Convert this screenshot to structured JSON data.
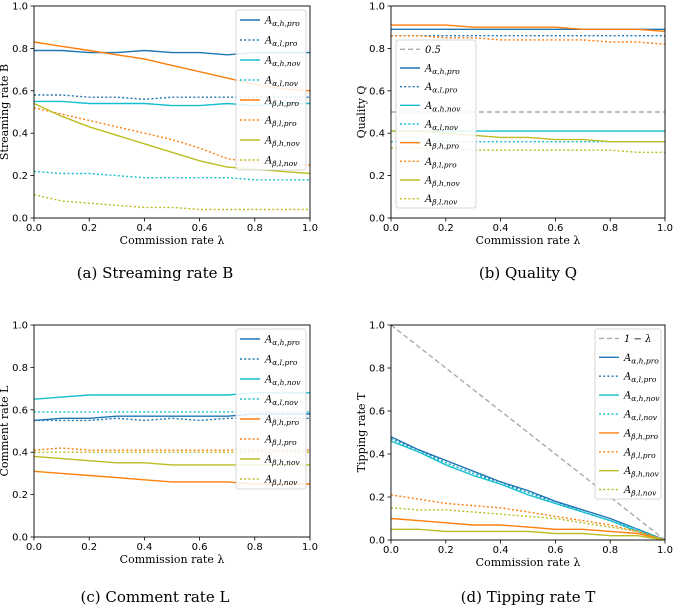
{
  "colors": {
    "alpha_h": "#1f77b4",
    "alpha_l": "#1f77b4",
    "alpha_h_nov": "#17becf",
    "beta_pro": "#ff7f0e",
    "beta_nov": "#bcbd22",
    "reference": "#aaaaaa"
  },
  "chart_data": [
    {
      "type": "line",
      "caption": "(a) Streaming rate B",
      "xlabel": "Commission rate λ",
      "ylabel": "Streaming rate B",
      "xlim": [
        0,
        1
      ],
      "ylim": [
        0,
        1
      ],
      "xticks": [
        "0.0",
        "0.2",
        "0.4",
        "0.6",
        "0.8",
        "1.0"
      ],
      "yticks": [
        "0.0",
        "0.2",
        "0.4",
        "0.6",
        "0.8",
        "1.0"
      ],
      "legend_position": "top-right",
      "x": [
        0,
        0.1,
        0.2,
        0.3,
        0.4,
        0.5,
        0.6,
        0.7,
        0.8,
        0.9,
        1.0
      ],
      "series": [
        {
          "name": "Aα,h,pro",
          "sub": "α,h,pro",
          "color": "#1f77b4",
          "dash": "solid",
          "values": [
            0.79,
            0.79,
            0.78,
            0.78,
            0.79,
            0.78,
            0.78,
            0.77,
            0.78,
            0.78,
            0.78
          ]
        },
        {
          "name": "Aα,l,pro",
          "sub": "α,l,pro",
          "color": "#1f77b4",
          "dash": "dotted",
          "values": [
            0.58,
            0.58,
            0.57,
            0.57,
            0.56,
            0.57,
            0.57,
            0.57,
            0.57,
            0.57,
            0.57
          ]
        },
        {
          "name": "Aα,h,nov",
          "sub": "α,h,nov",
          "color": "#17becf",
          "dash": "solid",
          "values": [
            0.55,
            0.55,
            0.54,
            0.54,
            0.54,
            0.53,
            0.53,
            0.54,
            0.53,
            0.54,
            0.54
          ]
        },
        {
          "name": "Aα,l,nov",
          "sub": "α,l,nov",
          "color": "#17becf",
          "dash": "dotted",
          "values": [
            0.22,
            0.21,
            0.21,
            0.2,
            0.19,
            0.19,
            0.19,
            0.19,
            0.18,
            0.18,
            0.18
          ]
        },
        {
          "name": "Aβ,h,pro",
          "sub": "β,h,pro",
          "color": "#ff7f0e",
          "dash": "solid",
          "values": [
            0.83,
            0.81,
            0.79,
            0.77,
            0.75,
            0.72,
            0.69,
            0.66,
            0.63,
            0.61,
            0.6
          ]
        },
        {
          "name": "Aβ,l,pro",
          "sub": "β,l,pro",
          "color": "#ff7f0e",
          "dash": "dotted",
          "values": [
            0.52,
            0.49,
            0.46,
            0.43,
            0.4,
            0.37,
            0.33,
            0.28,
            0.26,
            0.25,
            0.25
          ]
        },
        {
          "name": "Aβ,h,nov",
          "sub": "β,h,nov",
          "color": "#bcbd22",
          "dash": "solid",
          "values": [
            0.54,
            0.48,
            0.43,
            0.39,
            0.35,
            0.31,
            0.27,
            0.24,
            0.23,
            0.22,
            0.21
          ]
        },
        {
          "name": "Aβ,l,nov",
          "sub": "β,l,nov",
          "color": "#bcbd22",
          "dash": "dotted",
          "values": [
            0.11,
            0.08,
            0.07,
            0.06,
            0.05,
            0.05,
            0.04,
            0.04,
            0.04,
            0.04,
            0.04
          ]
        }
      ]
    },
    {
      "type": "line",
      "caption": "(b) Quality Q",
      "xlabel": "Commission rate λ",
      "ylabel": "Quality Q",
      "xlim": [
        0,
        1
      ],
      "ylim": [
        0,
        1
      ],
      "xticks": [
        "0.0",
        "0.2",
        "0.4",
        "0.6",
        "0.8",
        "1.0"
      ],
      "yticks": [
        "0.0",
        "0.2",
        "0.4",
        "0.6",
        "0.8",
        "1.0"
      ],
      "legend_position": "upper-left",
      "x": [
        0,
        0.1,
        0.2,
        0.3,
        0.4,
        0.5,
        0.6,
        0.7,
        0.8,
        0.9,
        1.0
      ],
      "series": [
        {
          "name": "0.5",
          "sub": "",
          "plain": "0.5",
          "color": "#aaaaaa",
          "dash": "dashed",
          "values": [
            0.5,
            0.5,
            0.5,
            0.5,
            0.5,
            0.5,
            0.5,
            0.5,
            0.5,
            0.5,
            0.5
          ]
        },
        {
          "name": "Aα,h,pro",
          "sub": "α,h,pro",
          "color": "#1f77b4",
          "dash": "solid",
          "values": [
            0.89,
            0.89,
            0.89,
            0.89,
            0.89,
            0.89,
            0.89,
            0.89,
            0.89,
            0.89,
            0.89
          ]
        },
        {
          "name": "Aα,l,pro",
          "sub": "α,l,pro",
          "color": "#1f77b4",
          "dash": "dotted",
          "values": [
            0.86,
            0.86,
            0.86,
            0.86,
            0.86,
            0.86,
            0.86,
            0.86,
            0.86,
            0.86,
            0.86
          ]
        },
        {
          "name": "Aα,h,nov",
          "sub": "α,h,nov",
          "color": "#17becf",
          "dash": "solid",
          "values": [
            0.41,
            0.41,
            0.41,
            0.41,
            0.41,
            0.41,
            0.41,
            0.41,
            0.41,
            0.41,
            0.41
          ]
        },
        {
          "name": "Aα,l,nov",
          "sub": "α,l,nov",
          "color": "#17becf",
          "dash": "dotted",
          "values": [
            0.36,
            0.36,
            0.36,
            0.36,
            0.36,
            0.36,
            0.36,
            0.36,
            0.36,
            0.36,
            0.36
          ]
        },
        {
          "name": "Aβ,h,pro",
          "sub": "β,h,pro",
          "color": "#ff7f0e",
          "dash": "solid",
          "values": [
            0.91,
            0.91,
            0.91,
            0.9,
            0.9,
            0.9,
            0.9,
            0.89,
            0.89,
            0.89,
            0.88
          ]
        },
        {
          "name": "Aβ,l,pro",
          "sub": "β,l,pro",
          "color": "#ff7f0e",
          "dash": "dotted",
          "values": [
            0.86,
            0.86,
            0.85,
            0.85,
            0.84,
            0.84,
            0.84,
            0.84,
            0.83,
            0.83,
            0.82
          ]
        },
        {
          "name": "Aβ,h,nov",
          "sub": "β,h,nov",
          "color": "#bcbd22",
          "dash": "solid",
          "values": [
            0.41,
            0.41,
            0.4,
            0.39,
            0.38,
            0.38,
            0.37,
            0.37,
            0.36,
            0.36,
            0.36
          ]
        },
        {
          "name": "Aβ,l,nov",
          "sub": "β,l,nov",
          "color": "#bcbd22",
          "dash": "dotted",
          "values": [
            0.33,
            0.33,
            0.33,
            0.32,
            0.32,
            0.32,
            0.32,
            0.32,
            0.32,
            0.31,
            0.31
          ]
        }
      ]
    },
    {
      "type": "line",
      "caption": "(c) Comment rate L",
      "xlabel": "Commission rate λ",
      "ylabel": "Comment rate L",
      "xlim": [
        0,
        1
      ],
      "ylim": [
        0,
        1
      ],
      "xticks": [
        "0.0",
        "0.2",
        "0.4",
        "0.6",
        "0.8",
        "1.0"
      ],
      "yticks": [
        "0.0",
        "0.2",
        "0.4",
        "0.6",
        "0.8",
        "1.0"
      ],
      "legend_position": "top-right",
      "x": [
        0,
        0.1,
        0.2,
        0.3,
        0.4,
        0.5,
        0.6,
        0.7,
        0.8,
        0.9,
        1.0
      ],
      "series": [
        {
          "name": "Aα,h,pro",
          "sub": "α,h,pro",
          "color": "#1f77b4",
          "dash": "solid",
          "values": [
            0.55,
            0.56,
            0.56,
            0.57,
            0.57,
            0.57,
            0.57,
            0.57,
            0.58,
            0.58,
            0.58
          ]
        },
        {
          "name": "Aα,l,pro",
          "sub": "α,l,pro",
          "color": "#1f77b4",
          "dash": "dotted",
          "values": [
            0.55,
            0.55,
            0.55,
            0.56,
            0.55,
            0.56,
            0.55,
            0.56,
            0.56,
            0.56,
            0.56
          ]
        },
        {
          "name": "Aα,h,nov",
          "sub": "α,h,nov",
          "color": "#17becf",
          "dash": "solid",
          "values": [
            0.65,
            0.66,
            0.67,
            0.67,
            0.67,
            0.67,
            0.67,
            0.67,
            0.68,
            0.68,
            0.68
          ]
        },
        {
          "name": "Aα,l,nov",
          "sub": "α,l,nov",
          "color": "#17becf",
          "dash": "dotted",
          "values": [
            0.59,
            0.59,
            0.59,
            0.59,
            0.59,
            0.59,
            0.59,
            0.59,
            0.59,
            0.59,
            0.59
          ]
        },
        {
          "name": "Aβ,h,pro",
          "sub": "β,h,pro",
          "color": "#ff7f0e",
          "dash": "solid",
          "values": [
            0.31,
            0.3,
            0.29,
            0.28,
            0.27,
            0.26,
            0.26,
            0.26,
            0.25,
            0.25,
            0.25
          ]
        },
        {
          "name": "Aβ,l,pro",
          "sub": "β,l,pro",
          "color": "#ff7f0e",
          "dash": "dotted",
          "values": [
            0.41,
            0.42,
            0.41,
            0.41,
            0.41,
            0.41,
            0.41,
            0.41,
            0.41,
            0.41,
            0.41
          ]
        },
        {
          "name": "Aβ,h,nov",
          "sub": "β,h,nov",
          "color": "#bcbd22",
          "dash": "solid",
          "values": [
            0.38,
            0.37,
            0.36,
            0.35,
            0.35,
            0.34,
            0.34,
            0.34,
            0.34,
            0.34,
            0.34
          ]
        },
        {
          "name": "Aβ,l,nov",
          "sub": "β,l,nov",
          "color": "#bcbd22",
          "dash": "dotted",
          "values": [
            0.4,
            0.4,
            0.4,
            0.4,
            0.4,
            0.4,
            0.4,
            0.4,
            0.4,
            0.4,
            0.4
          ]
        }
      ]
    },
    {
      "type": "line",
      "caption": "(d) Tipping rate T",
      "xlabel": "Commission rate λ",
      "ylabel": "Tipping rate T",
      "xlim": [
        0,
        1
      ],
      "ylim": [
        0,
        1
      ],
      "xticks": [
        "0.0",
        "0.2",
        "0.4",
        "0.6",
        "0.8",
        "1.0"
      ],
      "yticks": [
        "0.0",
        "0.2",
        "0.4",
        "0.6",
        "0.8",
        "1.0"
      ],
      "legend_position": "top-right",
      "x": [
        0,
        0.1,
        0.2,
        0.3,
        0.4,
        0.5,
        0.6,
        0.7,
        0.8,
        0.9,
        1.0
      ],
      "series": [
        {
          "name": "1 − λ",
          "sub": "",
          "plain": "1 − λ",
          "color": "#aaaaaa",
          "dash": "dashed",
          "values": [
            1.0,
            0.9,
            0.8,
            0.7,
            0.6,
            0.5,
            0.4,
            0.3,
            0.2,
            0.1,
            0.0
          ]
        },
        {
          "name": "Aα,h,pro",
          "sub": "α,h,pro",
          "color": "#1f77b4",
          "dash": "solid",
          "values": [
            0.48,
            0.42,
            0.37,
            0.32,
            0.27,
            0.23,
            0.18,
            0.14,
            0.1,
            0.05,
            0.0
          ]
        },
        {
          "name": "Aα,l,pro",
          "sub": "α,l,pro",
          "color": "#1f77b4",
          "dash": "dotted",
          "values": [
            0.47,
            0.42,
            0.36,
            0.31,
            0.27,
            0.22,
            0.18,
            0.13,
            0.09,
            0.05,
            0.0
          ]
        },
        {
          "name": "Aα,h,nov",
          "sub": "α,h,nov",
          "color": "#17becf",
          "dash": "solid",
          "values": [
            0.46,
            0.41,
            0.35,
            0.3,
            0.26,
            0.21,
            0.17,
            0.13,
            0.09,
            0.04,
            0.0
          ]
        },
        {
          "name": "Aα,l,nov",
          "sub": "α,l,nov",
          "color": "#17becf",
          "dash": "dotted",
          "values": [
            0.47,
            0.41,
            0.36,
            0.31,
            0.26,
            0.22,
            0.17,
            0.13,
            0.09,
            0.05,
            0.0
          ]
        },
        {
          "name": "Aβ,h,pro",
          "sub": "β,h,pro",
          "color": "#ff7f0e",
          "dash": "solid",
          "values": [
            0.1,
            0.09,
            0.08,
            0.07,
            0.07,
            0.06,
            0.05,
            0.05,
            0.04,
            0.03,
            0.0
          ]
        },
        {
          "name": "Aβ,l,pro",
          "sub": "β,l,pro",
          "color": "#ff7f0e",
          "dash": "dotted",
          "values": [
            0.21,
            0.19,
            0.17,
            0.16,
            0.15,
            0.13,
            0.11,
            0.09,
            0.07,
            0.04,
            0.0
          ]
        },
        {
          "name": "Aβ,h,nov",
          "sub": "β,h,nov",
          "color": "#bcbd22",
          "dash": "solid",
          "values": [
            0.05,
            0.05,
            0.04,
            0.04,
            0.04,
            0.04,
            0.03,
            0.03,
            0.02,
            0.02,
            0.0
          ]
        },
        {
          "name": "Aβ,l,nov",
          "sub": "β,l,nov",
          "color": "#bcbd22",
          "dash": "dotted",
          "values": [
            0.15,
            0.14,
            0.14,
            0.13,
            0.12,
            0.11,
            0.1,
            0.08,
            0.06,
            0.04,
            0.0
          ]
        }
      ]
    }
  ]
}
